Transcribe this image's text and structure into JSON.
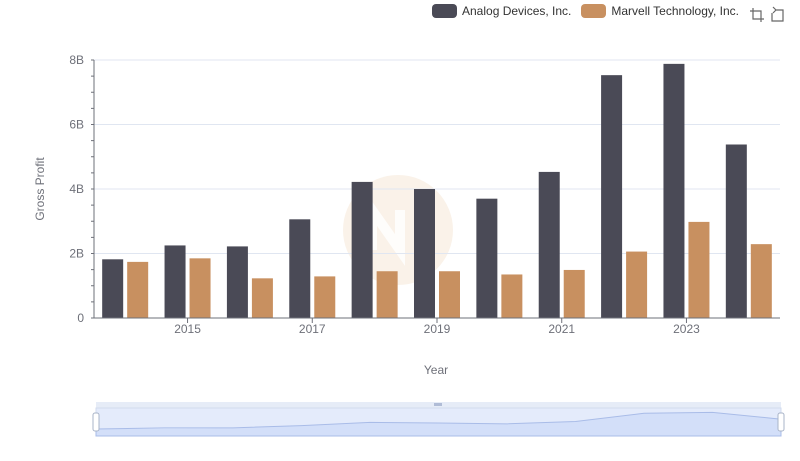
{
  "legend": {
    "items": [
      {
        "name": "Analog Devices, Inc.",
        "color": "#4a4a56"
      },
      {
        "name": "Marvell Technology, Inc.",
        "color": "#c89060"
      }
    ]
  },
  "toolbox": {
    "icons": [
      "zoom-icon",
      "restore-icon"
    ]
  },
  "chart_data": {
    "type": "bar",
    "categories": [
      "2014",
      "2015",
      "2016",
      "2017",
      "2018",
      "2019",
      "2020",
      "2021",
      "2022",
      "2023",
      "2024"
    ],
    "x_tick_labels": [
      "2015",
      "2017",
      "2019",
      "2021",
      "2023"
    ],
    "y_tick_labels": [
      "0",
      "2B",
      "4B",
      "6B",
      "8B"
    ],
    "ylim": [
      0,
      8000000000
    ],
    "xlabel": "Year",
    "ylabel": "Gross Profit",
    "grid": true,
    "legend_position": "top-right",
    "series": [
      {
        "name": "Analog Devices, Inc.",
        "color": "#4a4a56",
        "values": [
          1820000000,
          2250000000,
          2220000000,
          3060000000,
          4220000000,
          4000000000,
          3700000000,
          4530000000,
          7530000000,
          7880000000,
          5380000000
        ]
      },
      {
        "name": "Marvell Technology, Inc.",
        "color": "#c89060",
        "values": [
          1740000000,
          1850000000,
          1230000000,
          1290000000,
          1450000000,
          1450000000,
          1350000000,
          1490000000,
          2060000000,
          2980000000,
          2290000000
        ]
      }
    ]
  }
}
